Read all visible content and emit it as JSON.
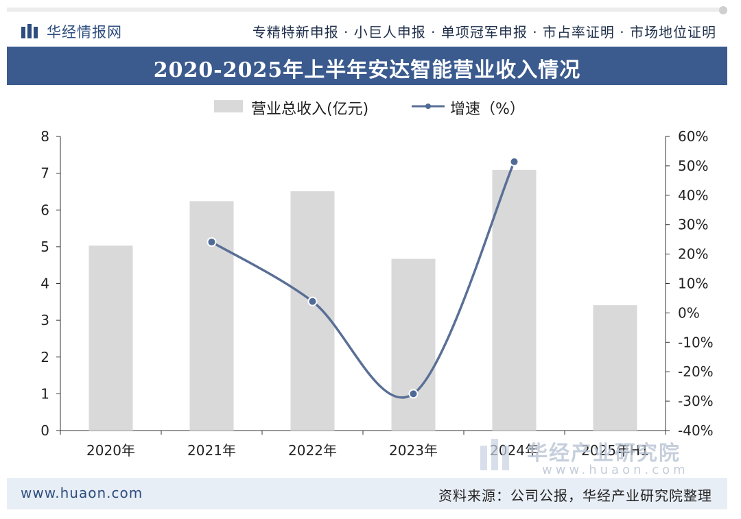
{
  "header": {
    "logo_text": "华经情报网",
    "services": "专精特新申报 · 小巨人申报 · 单项冠军申报 · 市占率证明 · 市场地位证明"
  },
  "footer": {
    "website": "www.huaon.com",
    "source": "资料来源：公司公报，华经产业研究院整理"
  },
  "watermark": {
    "name": "华经产业研究院",
    "url": "www.huaon.com"
  },
  "colors": {
    "title_bar": "#3b5b8f",
    "bar": "#d9d9d9",
    "line": "#5a6f96",
    "marker_fill": "#4f6a96"
  },
  "chart_data": {
    "type": "bar",
    "title": "2020-2025年上半年安达智能营业收入情况",
    "categories": [
      "2020年",
      "2021年",
      "2022年",
      "2023年",
      "2024年",
      "2025年H1"
    ],
    "series": [
      {
        "name": "营业总收入(亿元)",
        "type": "bar",
        "axis": "left",
        "values": [
          5.03,
          6.24,
          6.51,
          4.67,
          7.09,
          3.41
        ]
      },
      {
        "name": "增速（%）",
        "type": "line",
        "axis": "right",
        "values": [
          null,
          24.1,
          3.9,
          -27.5,
          51.4,
          null
        ]
      }
    ],
    "ylim_left": [
      0,
      8
    ],
    "yticks_left": [
      "0",
      "1",
      "2",
      "3",
      "4",
      "5",
      "6",
      "7",
      "8"
    ],
    "ylim_right": [
      -40,
      60
    ],
    "yticks_right": [
      "-40%",
      "-30%",
      "-20%",
      "-10%",
      "0%",
      "10%",
      "20%",
      "30%",
      "40%",
      "50%",
      "60%"
    ],
    "legend": "top-center",
    "grid": false
  }
}
